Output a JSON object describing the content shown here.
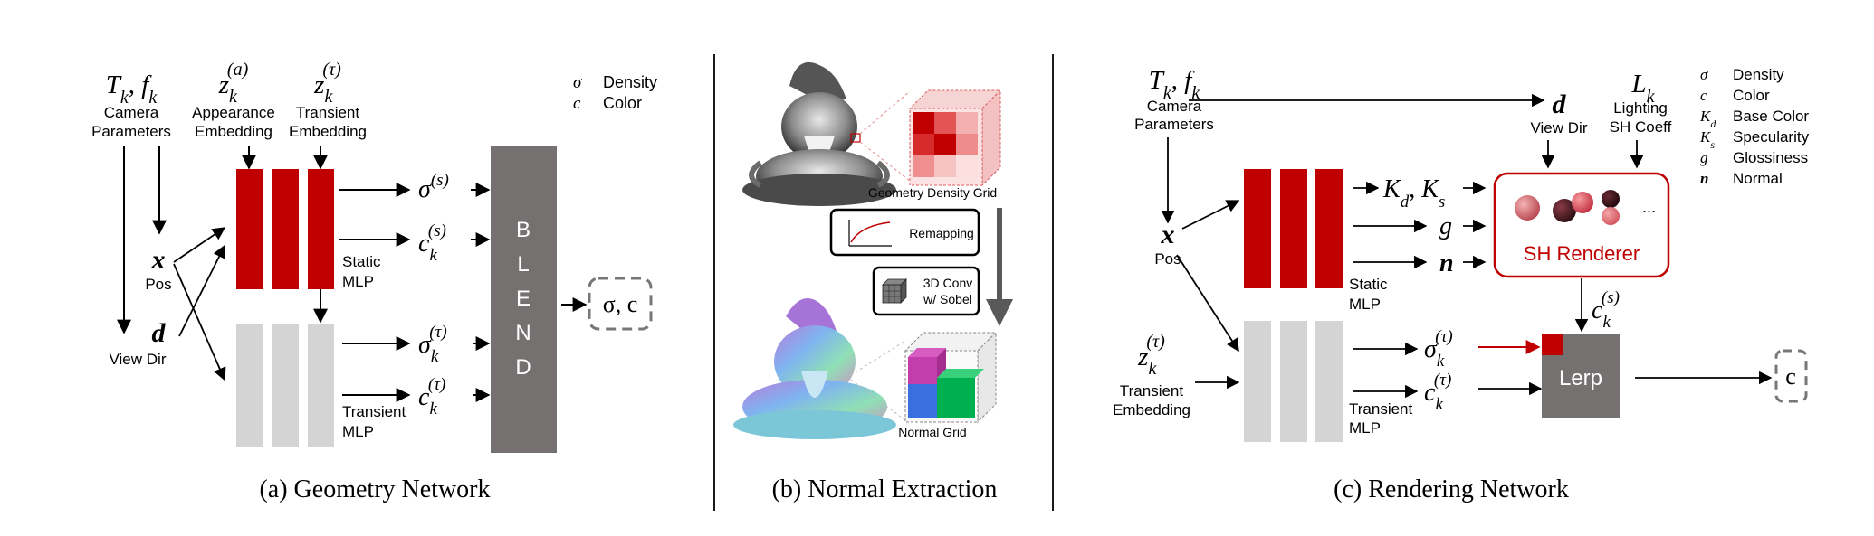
{
  "colors": {
    "mlp_red": "#c00000",
    "mlp_gray": "#d4d4d4",
    "blend_box": "#767171",
    "lerp_box": "#767171",
    "sh_border": "#c00000",
    "sh_text": "#c00000",
    "arrow": "#000000",
    "lerp_accent": "#c00000",
    "conv_arrow": "#595959",
    "divider": "#000000"
  },
  "icons": {
    "geometry_grid": "red-voxel-cube-icon",
    "normal_grid": "colored-voxel-cube-icon",
    "gnome_gray": "gnome-statue-grayscale-image",
    "gnome_normal": "gnome-statue-normal-map-image",
    "remap_curve": "curve-plot-icon",
    "conv_cube": "grid-cube-icon",
    "sh_spheres": "shaded-spheres-icon"
  },
  "panel_a": {
    "caption": "(a) Geometry Network",
    "cam_math": "T",
    "cam_sub": "k",
    "cam_math2": "f",
    "cam_sub2": "k",
    "cam_label1": "Camera",
    "cam_label2": "Parameters",
    "app_z": "z",
    "app_sub": "k",
    "app_sup": "(a)",
    "app_label1": "Appearance",
    "app_label2": "Embedding",
    "tr_z": "z",
    "tr_sub": "k",
    "tr_sup": "(τ)",
    "tr_label1": "Transient",
    "tr_label2": "Embedding",
    "x_sym": "x",
    "x_label": "Pos",
    "d_sym": "d",
    "d_label": "View Dir",
    "static_label1": "Static",
    "static_label2": "MLP",
    "transient_label1": "Transient",
    "transient_label2": "MLP",
    "sigma_s": "σ",
    "sigma_s_sup": "(s)",
    "c_s": "c",
    "c_s_sub": "k",
    "c_s_sup": "(s)",
    "sigma_t": "σ",
    "sigma_t_sub": "k",
    "sigma_t_sup": "(τ)",
    "c_t": "c",
    "c_t_sub": "k",
    "c_t_sup": "(τ)",
    "blend_letters": [
      "B",
      "L",
      "E",
      "N",
      "D"
    ],
    "output": "σ, c",
    "legend": [
      {
        "sym": "σ",
        "label": "Density"
      },
      {
        "sym": "c",
        "label": "Color"
      }
    ]
  },
  "panel_b": {
    "caption": "(b) Normal Extraction",
    "geometry_grid_label": "Geometry Density Grid",
    "remapping_label": "Remapping",
    "conv_label1": "3D Conv",
    "conv_label2": "w/ Sobel",
    "normal_grid_label": "Normal Grid"
  },
  "panel_c": {
    "caption": "(c) Rendering Network",
    "cam_math": "T",
    "cam_sub": "k",
    "cam_math2": "f",
    "cam_sub2": "k",
    "cam_label1": "Camera",
    "cam_label2": "Parameters",
    "d_sym": "d",
    "d_label": "View Dir",
    "l_sym": "L",
    "l_sub": "k",
    "l_label1": "Lighting",
    "l_label2": "SH Coeff",
    "x_sym": "x",
    "x_label": "Pos",
    "kd": "K",
    "kd_sub": "d",
    "ks": "K",
    "ks_sub": "s",
    "g_sym": "g",
    "n_sym": "n",
    "sh_ellipsis": "...",
    "sh_label": "SH Renderer",
    "static_label1": "Static",
    "static_label2": "MLP",
    "transient_label1": "Transient",
    "transient_label2": "MLP",
    "tr_z": "z",
    "tr_sub": "k",
    "tr_sup": "(τ)",
    "tr_label1": "Transient",
    "tr_label2": "Embedding",
    "sigma_t": "σ",
    "sigma_t_sub": "k",
    "sigma_t_sup": "(τ)",
    "c_t": "c",
    "c_t_sub": "k",
    "c_t_sup": "(τ)",
    "c_s": "c",
    "c_s_sub": "k",
    "c_s_sup": "(s)",
    "lerp_label": "Lerp",
    "output": "c",
    "legend": [
      {
        "sym": "σ",
        "sub": "",
        "label": "Density"
      },
      {
        "sym": "c",
        "sub": "",
        "label": "Color"
      },
      {
        "sym": "K",
        "sub": "d",
        "label": "Base Color"
      },
      {
        "sym": "K",
        "sub": "s",
        "label": "Specularity"
      },
      {
        "sym": "g",
        "sub": "",
        "label": "Glossiness"
      },
      {
        "sym": "n",
        "sub": "",
        "label": "Normal"
      }
    ]
  }
}
